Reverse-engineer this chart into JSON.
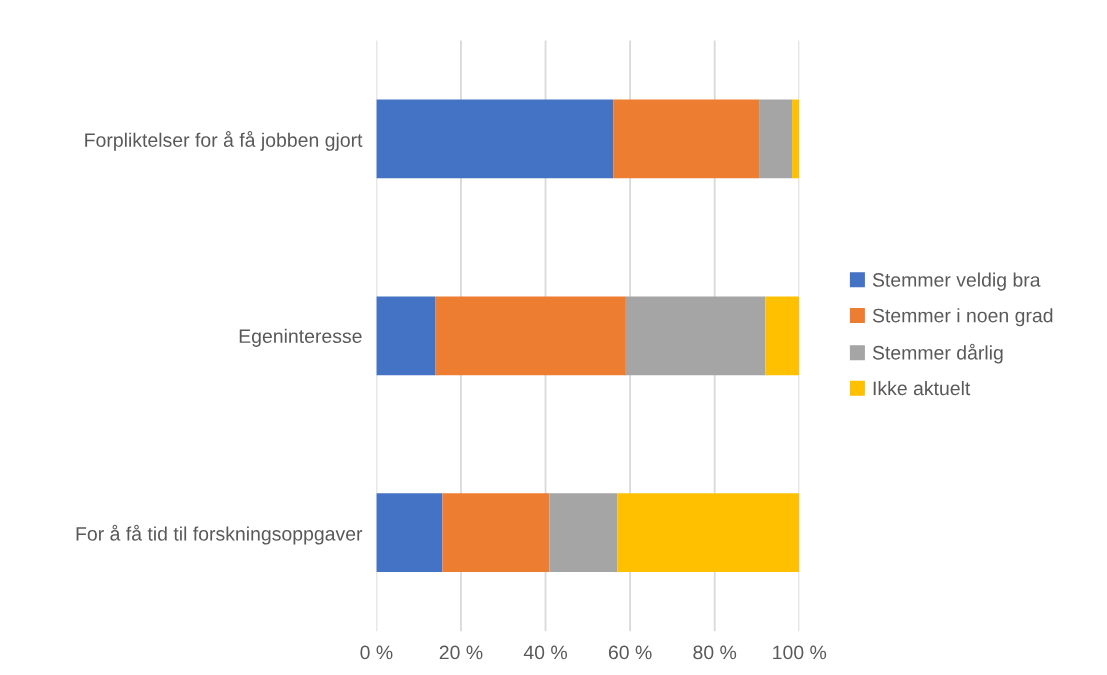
{
  "chart_data": {
    "type": "bar",
    "orientation": "horizontal",
    "stacked": true,
    "categories": [
      "Forpliktelser for å få jobben gjort",
      "Egeninteresse",
      "For å få tid til forskningsoppgaver"
    ],
    "series": [
      {
        "name": "Stemmer veldig bra",
        "color": "#4472c4",
        "values": [
          56,
          14,
          15.6
        ]
      },
      {
        "name": "Stemmer i noen grad",
        "color": "#ed7d31",
        "values": [
          34.5,
          45,
          25.3
        ]
      },
      {
        "name": "Stemmer dårlig",
        "color": "#a5a5a5",
        "values": [
          7.8,
          33,
          16.1
        ]
      },
      {
        "name": "Ikke aktuelt",
        "color": "#ffc000",
        "values": [
          1.7,
          8,
          43
        ]
      }
    ],
    "xlim": [
      0,
      100
    ],
    "xticks": [
      {
        "value": 0,
        "label": "0 %"
      },
      {
        "value": 20,
        "label": "20 %"
      },
      {
        "value": 40,
        "label": "40 %"
      },
      {
        "value": 60,
        "label": "60 %"
      },
      {
        "value": 80,
        "label": "80 %"
      },
      {
        "value": 100,
        "label": "100 %"
      }
    ],
    "grid": "x",
    "legend": "right"
  }
}
